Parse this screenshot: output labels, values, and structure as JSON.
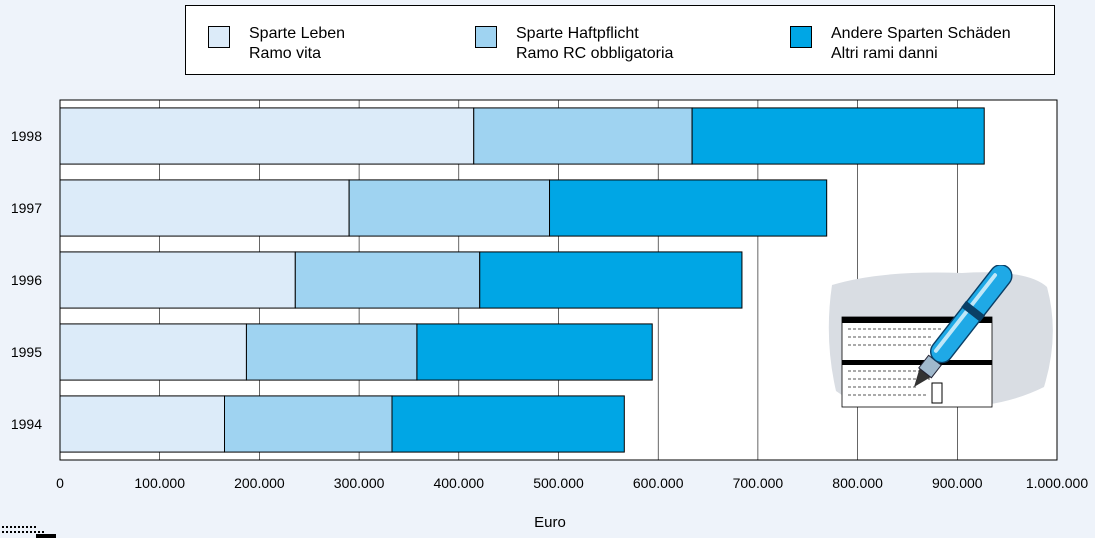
{
  "chart_data": {
    "type": "bar",
    "orientation": "horizontal",
    "stacked": true,
    "categories": [
      "1998",
      "1997",
      "1996",
      "1995",
      "1994"
    ],
    "series": [
      {
        "name": "Sparte Leben / Ramo vita",
        "color": "#dcebf9",
        "values": [
          415000,
          290000,
          236000,
          187000,
          165000
        ]
      },
      {
        "name": "Sparte Haftpflicht / Ramo RC obbligatoria",
        "color": "#9fd3f1",
        "values": [
          219000,
          201000,
          185000,
          171000,
          168000
        ]
      },
      {
        "name": "Andere Sparten Schäden / Altri rami danni",
        "color": "#00a6e5",
        "values": [
          293000,
          278000,
          263000,
          236000,
          233000
        ]
      }
    ],
    "xlim": [
      0,
      1000000
    ],
    "xticks": [
      "0",
      "100.000",
      "200.000",
      "300.000",
      "400.000",
      "500.000",
      "600.000",
      "700.000",
      "800.000",
      "900.000",
      "1.000.000"
    ],
    "xlabel": "Euro",
    "ylabel": "",
    "grid": "vertical",
    "legend_placement": "top"
  },
  "legend": [
    {
      "line1": "Sparte Leben",
      "line2": "Ramo vita",
      "color": "#dcebf9"
    },
    {
      "line1": "Sparte Haftpflicht",
      "line2": "Ramo RC obbligatoria",
      "color": "#9fd3f1"
    },
    {
      "line1": "Andere Sparten Schäden",
      "line2": "Altri rami danni",
      "color": "#00a6e5"
    }
  ],
  "illustration": {
    "icon": "fountain-pen-on-form-icon"
  }
}
